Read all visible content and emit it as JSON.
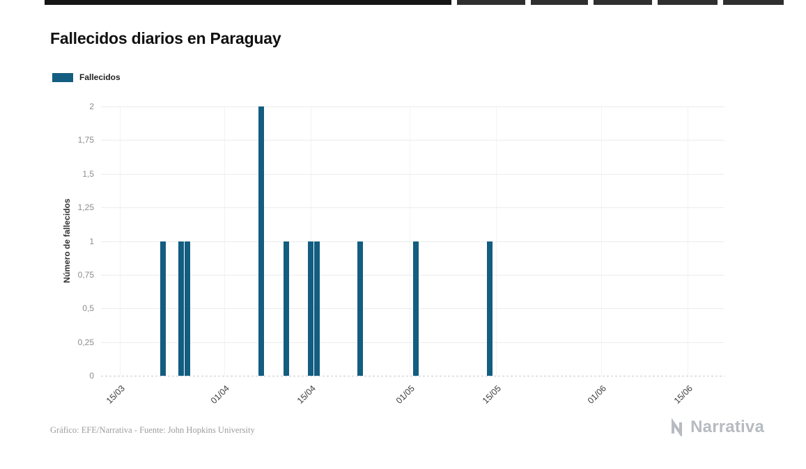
{
  "title": "Fallecidos diarios en Paraguay",
  "legend": {
    "label": "Fallecidos",
    "color": "#135d80"
  },
  "footer": {
    "source": "Gráfico: EFE/Narrativa - Fuente: John Hopkins University",
    "brand": "Narrativa"
  },
  "chart_data": {
    "type": "bar",
    "title": "Fallecidos diarios en Paraguay",
    "series_name": "Fallecidos",
    "bar_color": "#135d80",
    "xlabel": "",
    "ylabel": "Número de fallecidos",
    "ylim": [
      0,
      2
    ],
    "yticks": [
      "0",
      "0,25",
      "0,5",
      "0,75",
      "1",
      "1,25",
      "1,5",
      "1,75",
      "2"
    ],
    "ytick_values": [
      0,
      0.25,
      0.5,
      0.75,
      1,
      1.25,
      1.5,
      1.75,
      2
    ],
    "xticks": [
      "15/03",
      "01/04",
      "15/04",
      "01/05",
      "15/05",
      "01/06",
      "15/06"
    ],
    "x_domain": [
      "12/03",
      "21/06"
    ],
    "grid": "horizontal-light",
    "legend_position": "top-left",
    "points": [
      {
        "date": "22/03",
        "value": 1
      },
      {
        "date": "25/03",
        "value": 1
      },
      {
        "date": "26/03",
        "value": 1
      },
      {
        "date": "07/04",
        "value": 2
      },
      {
        "date": "11/04",
        "value": 1
      },
      {
        "date": "15/04",
        "value": 1
      },
      {
        "date": "16/04",
        "value": 1
      },
      {
        "date": "23/04",
        "value": 1
      },
      {
        "date": "02/05",
        "value": 1
      },
      {
        "date": "14/05",
        "value": 1
      }
    ]
  }
}
